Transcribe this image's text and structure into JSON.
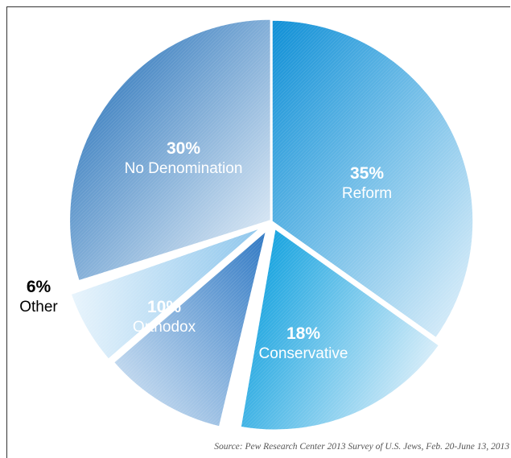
{
  "chart_data": {
    "type": "pie",
    "title": "",
    "slices": [
      {
        "label": "Reform",
        "value": 35,
        "value_label": "35%",
        "color": "#1f9ad8"
      },
      {
        "label": "Conservative",
        "value": 18,
        "value_label": "18%",
        "color": "#1fa6e0"
      },
      {
        "label": "",
        "value": 1,
        "value_label": "",
        "color": "#ffffff"
      },
      {
        "label": "Orthodox",
        "value": 10,
        "value_label": "10%",
        "color": "#3b82c6"
      },
      {
        "label": "Other",
        "value": 6,
        "value_label": "6%",
        "color": "#b7d9f2"
      },
      {
        "label": "",
        "value": 0.5,
        "value_label": "",
        "color": "#ffffff"
      },
      {
        "label": "No Denomination",
        "value": 30,
        "value_label": "30%",
        "color": "#1c6fb8"
      }
    ],
    "legend": "none"
  },
  "source": "Source: Pew Research Center 2013 Survey of U.S. Jews, Feb. 20-June 13, 2013"
}
